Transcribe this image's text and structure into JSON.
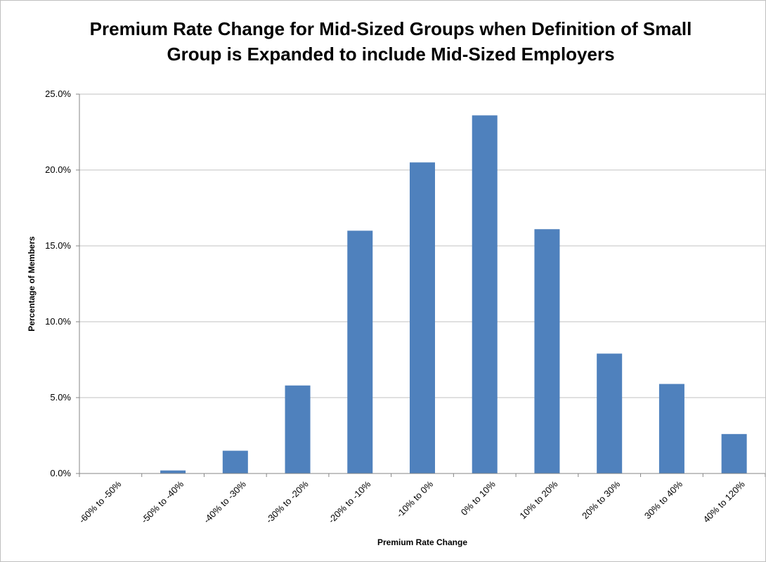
{
  "chart_data": {
    "type": "bar",
    "title_line1": "Premium Rate Change for Mid-Sized Groups when Definition of Small",
    "title_line2": "Group is Expanded to include Mid-Sized Employers",
    "xlabel": "Premium Rate Change",
    "ylabel": "Percentage of Members",
    "categories": [
      "-60% to -50%",
      "-50% to -40%",
      "-40% to -30%",
      "-30% to -20%",
      "-20% to -10%",
      "-10% to 0%",
      "0% to 10%",
      "10% to 20%",
      "20% to 30%",
      "30% to 40%",
      "40% to 120%"
    ],
    "values": [
      0.0,
      0.2,
      1.5,
      5.8,
      16.0,
      20.5,
      23.6,
      16.1,
      7.9,
      5.9,
      2.6
    ],
    "ylim": [
      0,
      25
    ],
    "yticks": [
      0,
      5,
      10,
      15,
      20,
      25
    ],
    "ytick_labels": [
      "0.0%",
      "5.0%",
      "10.0%",
      "15.0%",
      "20.0%",
      "25.0%"
    ],
    "grid": true,
    "bar_color": "#4f81bd",
    "grid_color": "#c0c0c0",
    "legend": "none"
  }
}
